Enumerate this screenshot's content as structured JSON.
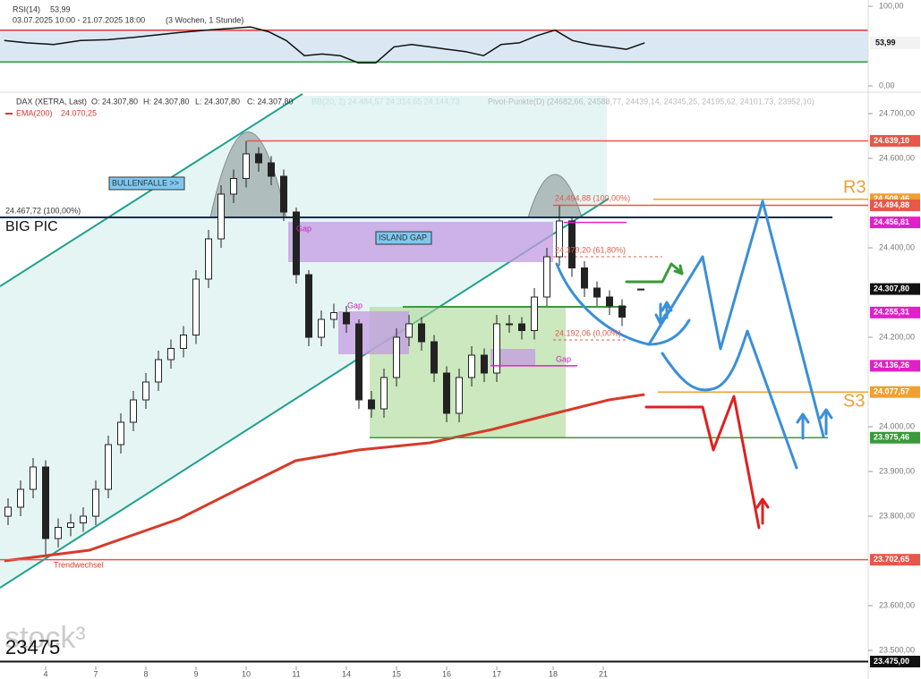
{
  "chart_data": [
    {
      "type": "line",
      "title": "RSI(14)",
      "period": "03.07.2025 10:00 - 21.07.2025 18:00",
      "interval": "(3 Wochen, 1 Stunde)",
      "x": [
        -6.6,
        -3,
        1.3,
        5.6,
        9.9,
        14.1,
        21.3,
        25.6,
        32.7,
        35.6,
        38.4,
        41.3,
        44.1,
        47,
        49.9,
        52.7,
        55.6,
        58.4,
        61.3,
        64.1,
        67,
        69.9,
        72.7,
        75.6,
        78.4,
        81.3,
        84.1,
        87,
        89.9,
        92.7,
        95.6
      ],
      "values": [
        57,
        54,
        52,
        57,
        58,
        61,
        67,
        70,
        74,
        68,
        57,
        38,
        40,
        38,
        29,
        29,
        49,
        52,
        49,
        46,
        43,
        38,
        52,
        54,
        63,
        70,
        57,
        52,
        49,
        46,
        53.99
      ],
      "color": "#111111",
      "xlim": [
        -7,
        131
      ],
      "ylim": [
        0,
        100
      ],
      "yticks": [
        {
          "value": 0,
          "label": "0,00"
        },
        {
          "value": 100,
          "label": "100,00"
        }
      ],
      "levels": [
        {
          "value": 70,
          "color": "#e53935"
        },
        {
          "value": 30,
          "color": "#2e9e3e"
        }
      ],
      "last": {
        "value": 53.99,
        "label": "53,99"
      }
    },
    {
      "type": "candlestick",
      "title": "DAX (XETRA, Last)",
      "ohlc_labels": [
        "O: 24.307,80",
        "H: 24.307,80",
        "L: 24.307,80",
        "C: 24.307,80"
      ],
      "indicator_labels": [
        "BB(20, 2)  24.484,57  24.314,65  24.144,73",
        "Pivot-Punkte(D) (24682,66, 24588,77, 24439,14, 24345,25, 24195,62, 24101,73, 23952,10)"
      ],
      "x": [
        -6,
        -4,
        -2,
        0,
        2,
        4,
        6,
        8,
        10,
        12,
        14,
        16,
        18,
        20,
        22,
        24,
        26,
        28,
        30,
        32,
        34,
        36,
        38,
        40,
        42,
        44,
        46,
        48,
        50,
        52,
        54,
        56,
        58,
        60,
        62,
        64,
        66,
        68,
        70,
        72,
        74,
        76,
        78,
        80,
        82,
        84,
        86,
        88,
        90,
        92,
        95
      ],
      "open": [
        23800,
        23820,
        23860,
        23910,
        23750,
        23775,
        23785,
        23800,
        23860,
        23960,
        24010,
        24060,
        24100,
        24150,
        24175,
        24205,
        24330,
        24420,
        24520,
        24555,
        24610,
        24590,
        24560,
        24480,
        24340,
        24200,
        24240,
        24255,
        24230,
        24060,
        24040,
        24110,
        24200,
        24230,
        24190,
        24120,
        24030,
        24110,
        24160,
        24120,
        24230,
        24230,
        24215,
        24290,
        24380,
        24460,
        24355,
        24310,
        24290,
        24270,
        24307.8
      ],
      "high": [
        23840,
        23880,
        23930,
        23925,
        23795,
        23805,
        23820,
        23880,
        23980,
        24030,
        24080,
        24120,
        24170,
        24195,
        24225,
        24350,
        24440,
        24540,
        24575,
        24639.1,
        24625,
        24605,
        24575,
        24490,
        24350,
        24260,
        24275,
        24270,
        24240,
        24080,
        24130,
        24220,
        24250,
        24245,
        24205,
        24135,
        24130,
        24180,
        24175,
        24250,
        24250,
        24245,
        24310,
        24400,
        24494.88,
        24470,
        24370,
        24325,
        24305,
        24285,
        24307.8
      ],
      "low": [
        23780,
        23800,
        23840,
        23715,
        23730,
        23755,
        23765,
        23780,
        23840,
        23940,
        23990,
        24040,
        24080,
        24130,
        24155,
        24185,
        24310,
        24400,
        24500,
        24535,
        24570,
        24540,
        24460,
        24320,
        24180,
        24180,
        24220,
        24210,
        24040,
        24020,
        24020,
        24090,
        24180,
        24170,
        24100,
        24010,
        24010,
        24090,
        24100,
        24100,
        24210,
        24195,
        24195,
        24270,
        24360,
        24335,
        24290,
        24270,
        24250,
        24225,
        24307.8
      ],
      "close": [
        23820,
        23860,
        23910,
        23750,
        23775,
        23785,
        23800,
        23860,
        23960,
        24010,
        24060,
        24100,
        24150,
        24175,
        24205,
        24330,
        24420,
        24520,
        24555,
        24610,
        24590,
        24560,
        24480,
        24340,
        24200,
        24240,
        24255,
        24230,
        24060,
        24040,
        24110,
        24200,
        24230,
        24190,
        24120,
        24030,
        24110,
        24160,
        24120,
        24230,
        24230,
        24215,
        24290,
        24380,
        24460,
        24355,
        24310,
        24290,
        24270,
        24245,
        24307.8
      ],
      "overlays": [
        {
          "name": "EMA(200)",
          "value_label": "24.070,25",
          "color": "#d63b2a",
          "x": [
            -6.6,
            7,
            21.3,
            32.7,
            39.9,
            49.9,
            61.3,
            71.3,
            81.3,
            89.9,
            95.6
          ],
          "values": [
            23700,
            23724,
            23794,
            23874,
            23924,
            23948,
            23964,
            23994,
            24030,
            24060,
            24072
          ]
        }
      ],
      "xlim": [
        -7,
        131
      ],
      "ylim": [
        23464,
        24740
      ],
      "xticks": [
        {
          "value": 0,
          "label": "4"
        },
        {
          "value": 8,
          "label": "7"
        },
        {
          "value": 16,
          "label": "8"
        },
        {
          "value": 24,
          "label": "9"
        },
        {
          "value": 32,
          "label": "10"
        },
        {
          "value": 40,
          "label": "11"
        },
        {
          "value": 48,
          "label": "14"
        },
        {
          "value": 56,
          "label": "15"
        },
        {
          "value": 64,
          "label": "16"
        },
        {
          "value": 72,
          "label": "17"
        },
        {
          "value": 81,
          "label": "18"
        },
        {
          "value": 89,
          "label": "21"
        }
      ],
      "yticks": [
        {
          "value": 24700,
          "label": "24.700,00"
        },
        {
          "value": 24600,
          "label": "24.600,00"
        },
        {
          "value": 24400,
          "label": "24.400,00"
        },
        {
          "value": 24200,
          "label": "24.200,00"
        },
        {
          "value": 24000,
          "label": "24.000,00"
        },
        {
          "value": 23900,
          "label": "23.900,00"
        },
        {
          "value": 23800,
          "label": "23.800,00"
        },
        {
          "value": 23600,
          "label": "23.600,00"
        },
        {
          "value": 23500,
          "label": "23.500,00"
        }
      ],
      "price_labels": [
        {
          "value": 24639.1,
          "label": "24.639,10",
          "color": "#e8574a"
        },
        {
          "value": 24508.46,
          "label": "24.508,46",
          "color": "#f0a030"
        },
        {
          "value": 24494.88,
          "label": "24.494,88",
          "color": "#e8574a"
        },
        {
          "value": 24456.81,
          "label": "24.456,81",
          "color": "#e020c8"
        },
        {
          "value": 24307.8,
          "label": "24.307,80",
          "color": "#111111"
        },
        {
          "value": 24255.31,
          "label": "24.255,31",
          "color": "#e020c8"
        },
        {
          "value": 24136.26,
          "label": "24.136,26",
          "color": "#e020c8"
        },
        {
          "value": 24077.57,
          "label": "24.077,57",
          "color": "#f0a030"
        },
        {
          "value": 23975.46,
          "label": "23.975,46",
          "color": "#3a9a3a"
        },
        {
          "value": 23702.65,
          "label": "23.702,65",
          "color": "#e8574a"
        },
        {
          "value": 23475,
          "label": "23.475,00",
          "color": "#111111"
        }
      ],
      "annotations": {
        "bullenfalle": "BULLENFALLE >>",
        "fib_left": "24.467,72 (100,00%)",
        "big_pic": "BIG  PIC",
        "gap_1": "Gap",
        "gap_2": "Gap",
        "gap_3": "Gap",
        "island_gap": "ISLAND GAP",
        "fib_100": "24.494,88 (100,00%)",
        "fib_618": "24.379,20 (61,80%)",
        "fib_0": "24.192,06 (0,00%)",
        "r3": "R3",
        "s3": "S3",
        "trendwechsel": "Trendwechsel",
        "target": "23475",
        "watermark": "stock³"
      }
    }
  ]
}
